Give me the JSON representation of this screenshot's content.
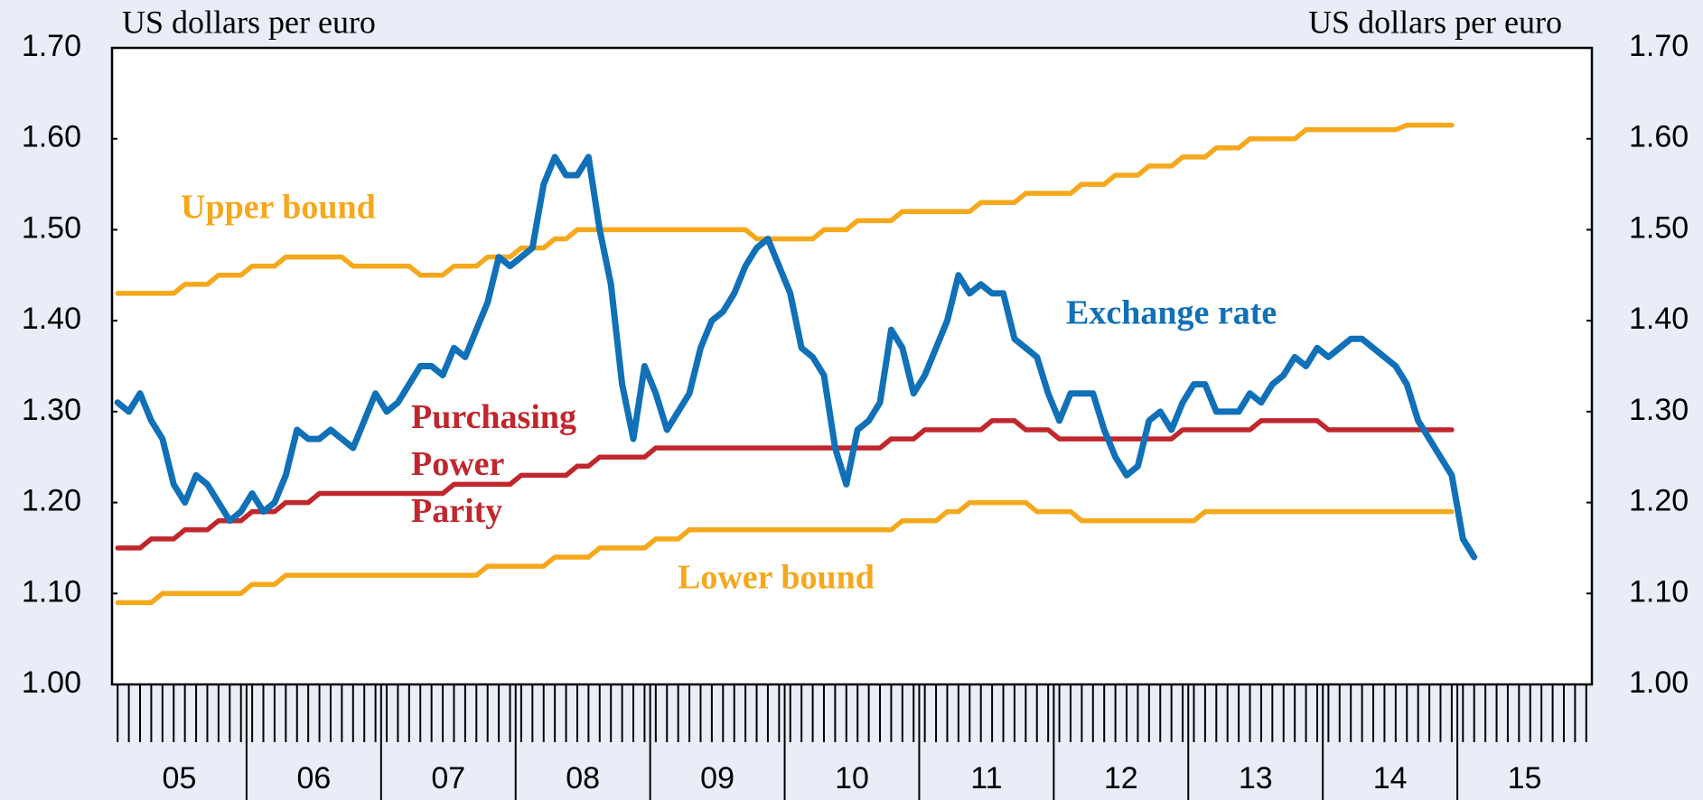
{
  "chart_data": {
    "type": "line",
    "y_axis_label": "US dollars per euro",
    "y2_axis_label": "US dollars per euro",
    "categories": [
      "05",
      "06",
      "07",
      "08",
      "09",
      "10",
      "11",
      "12",
      "13",
      "14",
      "15"
    ],
    "ylim": [
      1.0,
      1.7
    ],
    "yticks": [
      {
        "value": 1.0,
        "label": "1.00"
      },
      {
        "value": 1.1,
        "label": "1.10"
      },
      {
        "value": 1.2,
        "label": "1.20"
      },
      {
        "value": 1.3,
        "label": "1.30"
      },
      {
        "value": 1.4,
        "label": "1.40"
      },
      {
        "value": 1.5,
        "label": "1.50"
      },
      {
        "value": 1.6,
        "label": "1.60"
      },
      {
        "value": 1.7,
        "label": "1.70"
      }
    ],
    "y2lim": [
      1.0,
      1.7
    ],
    "y2ticks": [
      {
        "value": 1.0,
        "label": "1.00"
      },
      {
        "value": 1.1,
        "label": "1.10"
      },
      {
        "value": 1.2,
        "label": "1.20"
      },
      {
        "value": 1.3,
        "label": "1.30"
      },
      {
        "value": 1.4,
        "label": "1.40"
      },
      {
        "value": 1.5,
        "label": "1.50"
      },
      {
        "value": 1.6,
        "label": "1.60"
      },
      {
        "value": 1.7,
        "label": "1.70"
      }
    ],
    "grid": false,
    "series": [
      {
        "name": "Upper bound",
        "color": "#f5a81c",
        "values": [
          [
            1.43,
            1.43,
            1.43,
            1.43,
            1.43,
            1.43,
            1.44,
            1.44,
            1.44,
            1.45,
            1.45,
            1.45
          ],
          [
            1.46,
            1.46,
            1.46,
            1.47,
            1.47,
            1.47,
            1.47,
            1.47,
            1.47,
            1.46,
            1.46,
            1.46
          ],
          [
            1.46,
            1.46,
            1.46,
            1.45,
            1.45,
            1.45,
            1.46,
            1.46,
            1.46,
            1.47,
            1.47,
            1.47
          ],
          [
            1.48,
            1.48,
            1.48,
            1.49,
            1.49,
            1.5,
            1.5,
            1.5,
            1.5,
            1.5,
            1.5,
            1.5
          ],
          [
            1.5,
            1.5,
            1.5,
            1.5,
            1.5,
            1.5,
            1.5,
            1.5,
            1.5,
            1.49,
            1.49,
            1.49
          ],
          [
            1.49,
            1.49,
            1.49,
            1.5,
            1.5,
            1.5,
            1.51,
            1.51,
            1.51,
            1.51,
            1.52,
            1.52
          ],
          [
            1.52,
            1.52,
            1.52,
            1.52,
            1.52,
            1.53,
            1.53,
            1.53,
            1.53,
            1.54,
            1.54,
            1.54
          ],
          [
            1.54,
            1.54,
            1.55,
            1.55,
            1.55,
            1.56,
            1.56,
            1.56,
            1.57,
            1.57,
            1.57,
            1.58
          ],
          [
            1.58,
            1.58,
            1.59,
            1.59,
            1.59,
            1.6,
            1.6,
            1.6,
            1.6,
            1.6,
            1.61,
            1.61
          ],
          [
            1.61,
            1.61,
            1.61,
            1.61,
            1.61,
            1.61,
            1.61,
            1.615,
            1.615,
            1.615,
            1.615,
            1.615
          ],
          [
            null,
            null,
            null,
            null,
            null,
            null,
            null,
            null,
            null,
            null,
            null,
            null
          ]
        ]
      },
      {
        "name": "Purchasing Power Parity",
        "color": "#c0272d",
        "values": [
          [
            1.15,
            1.15,
            1.15,
            1.16,
            1.16,
            1.16,
            1.17,
            1.17,
            1.17,
            1.18,
            1.18,
            1.18
          ],
          [
            1.19,
            1.19,
            1.19,
            1.2,
            1.2,
            1.2,
            1.21,
            1.21,
            1.21,
            1.21,
            1.21,
            1.21
          ],
          [
            1.21,
            1.21,
            1.21,
            1.21,
            1.21,
            1.21,
            1.22,
            1.22,
            1.22,
            1.22,
            1.22,
            1.22
          ],
          [
            1.23,
            1.23,
            1.23,
            1.23,
            1.23,
            1.24,
            1.24,
            1.25,
            1.25,
            1.25,
            1.25,
            1.25
          ],
          [
            1.26,
            1.26,
            1.26,
            1.26,
            1.26,
            1.26,
            1.26,
            1.26,
            1.26,
            1.26,
            1.26,
            1.26
          ],
          [
            1.26,
            1.26,
            1.26,
            1.26,
            1.26,
            1.26,
            1.26,
            1.26,
            1.26,
            1.27,
            1.27,
            1.27
          ],
          [
            1.28,
            1.28,
            1.28,
            1.28,
            1.28,
            1.28,
            1.29,
            1.29,
            1.29,
            1.28,
            1.28,
            1.28
          ],
          [
            1.27,
            1.27,
            1.27,
            1.27,
            1.27,
            1.27,
            1.27,
            1.27,
            1.27,
            1.27,
            1.27,
            1.28
          ],
          [
            1.28,
            1.28,
            1.28,
            1.28,
            1.28,
            1.28,
            1.29,
            1.29,
            1.29,
            1.29,
            1.29,
            1.29
          ],
          [
            1.28,
            1.28,
            1.28,
            1.28,
            1.28,
            1.28,
            1.28,
            1.28,
            1.28,
            1.28,
            1.28,
            1.28
          ],
          [
            null,
            null,
            null,
            null,
            null,
            null,
            null,
            null,
            null,
            null,
            null,
            null
          ]
        ]
      },
      {
        "name": "Lower bound",
        "color": "#f5a81c",
        "values": [
          [
            1.09,
            1.09,
            1.09,
            1.09,
            1.1,
            1.1,
            1.1,
            1.1,
            1.1,
            1.1,
            1.1,
            1.1
          ],
          [
            1.11,
            1.11,
            1.11,
            1.12,
            1.12,
            1.12,
            1.12,
            1.12,
            1.12,
            1.12,
            1.12,
            1.12
          ],
          [
            1.12,
            1.12,
            1.12,
            1.12,
            1.12,
            1.12,
            1.12,
            1.12,
            1.12,
            1.13,
            1.13,
            1.13
          ],
          [
            1.13,
            1.13,
            1.13,
            1.14,
            1.14,
            1.14,
            1.14,
            1.15,
            1.15,
            1.15,
            1.15,
            1.15
          ],
          [
            1.16,
            1.16,
            1.16,
            1.17,
            1.17,
            1.17,
            1.17,
            1.17,
            1.17,
            1.17,
            1.17,
            1.17
          ],
          [
            1.17,
            1.17,
            1.17,
            1.17,
            1.17,
            1.17,
            1.17,
            1.17,
            1.17,
            1.17,
            1.18,
            1.18
          ],
          [
            1.18,
            1.18,
            1.19,
            1.19,
            1.2,
            1.2,
            1.2,
            1.2,
            1.2,
            1.2,
            1.19,
            1.19
          ],
          [
            1.19,
            1.19,
            1.18,
            1.18,
            1.18,
            1.18,
            1.18,
            1.18,
            1.18,
            1.18,
            1.18,
            1.18
          ],
          [
            1.18,
            1.19,
            1.19,
            1.19,
            1.19,
            1.19,
            1.19,
            1.19,
            1.19,
            1.19,
            1.19,
            1.19
          ],
          [
            1.19,
            1.19,
            1.19,
            1.19,
            1.19,
            1.19,
            1.19,
            1.19,
            1.19,
            1.19,
            1.19,
            1.19
          ],
          [
            null,
            null,
            null,
            null,
            null,
            null,
            null,
            null,
            null,
            null,
            null,
            null
          ]
        ]
      },
      {
        "name": "Exchange rate",
        "color": "#1070b8",
        "values": [
          [
            1.31,
            1.3,
            1.32,
            1.29,
            1.27,
            1.22,
            1.2,
            1.23,
            1.22,
            1.2,
            1.18,
            1.19
          ],
          [
            1.21,
            1.19,
            1.2,
            1.23,
            1.28,
            1.27,
            1.27,
            1.28,
            1.27,
            1.26,
            1.29,
            1.32
          ],
          [
            1.3,
            1.31,
            1.33,
            1.35,
            1.35,
            1.34,
            1.37,
            1.36,
            1.39,
            1.42,
            1.47,
            1.46
          ],
          [
            1.47,
            1.48,
            1.55,
            1.58,
            1.56,
            1.56,
            1.58,
            1.5,
            1.44,
            1.33,
            1.27,
            1.35
          ],
          [
            1.32,
            1.28,
            1.3,
            1.32,
            1.37,
            1.4,
            1.41,
            1.43,
            1.46,
            1.48,
            1.49,
            1.46
          ],
          [
            1.43,
            1.37,
            1.36,
            1.34,
            1.26,
            1.22,
            1.28,
            1.29,
            1.31,
            1.39,
            1.37,
            1.32
          ],
          [
            1.34,
            1.37,
            1.4,
            1.45,
            1.43,
            1.44,
            1.43,
            1.43,
            1.38,
            1.37,
            1.36,
            1.32
          ],
          [
            1.29,
            1.32,
            1.32,
            1.32,
            1.28,
            1.25,
            1.23,
            1.24,
            1.29,
            1.3,
            1.28,
            1.31
          ],
          [
            1.33,
            1.33,
            1.3,
            1.3,
            1.3,
            1.32,
            1.31,
            1.33,
            1.34,
            1.36,
            1.35,
            1.37
          ],
          [
            1.36,
            1.37,
            1.38,
            1.38,
            1.37,
            1.36,
            1.35,
            1.33,
            1.29,
            1.27,
            1.25,
            1.23
          ],
          [
            1.16,
            1.14,
            null,
            null,
            null,
            null,
            null,
            null,
            null,
            null,
            null,
            null
          ]
        ]
      }
    ]
  }
}
